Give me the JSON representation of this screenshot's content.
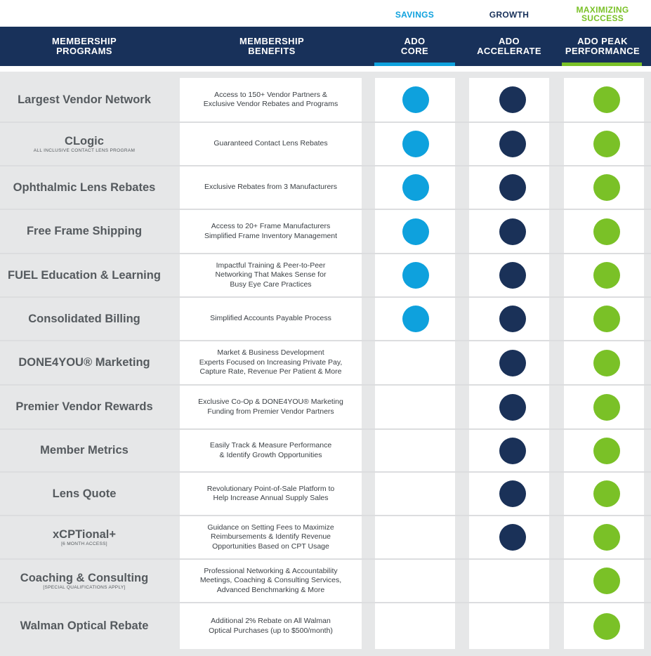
{
  "tiers": {
    "core_label": "SAVINGS",
    "accelerate_label": "GROWTH",
    "peak_label_line1": "MAXIMIZING",
    "peak_label_line2": "SUCCESS"
  },
  "header": {
    "programs_line1": "MEMBERSHIP",
    "programs_line2": "PROGRAMS",
    "benefits_line1": "MEMBERSHIP",
    "benefits_line2": "BENEFITS",
    "core_line1": "ADO",
    "core_line2": "CORE",
    "accelerate_line1": "ADO",
    "accelerate_line2": "ACCELERATE",
    "peak_line1": "ADO PEAK",
    "peak_line2": "PERFORMANCE"
  },
  "colors": {
    "navy": "#18315a",
    "core_blue": "#0ea1dd",
    "accelerate_navy": "#1a3158",
    "peak_green": "#7ac127"
  },
  "rows": [
    {
      "program": "Largest Vendor Network",
      "sub": "",
      "benefit": "Access to 150+ Vendor Partners &\nExclusive Vendor Rebates and Programs",
      "core": true,
      "accelerate": true,
      "peak": true
    },
    {
      "program": "CLogic",
      "sub": "ALL INCLUSIVE CONTACT LENS PROGRAM",
      "benefit": "Guaranteed Contact Lens Rebates",
      "core": true,
      "accelerate": true,
      "peak": true
    },
    {
      "program": "Ophthalmic Lens Rebates",
      "sub": "",
      "benefit": "Exclusive Rebates from 3 Manufacturers",
      "core": true,
      "accelerate": true,
      "peak": true
    },
    {
      "program": "Free Frame Shipping",
      "sub": "",
      "benefit": "Access to 20+ Frame Manufacturers\nSimplified Frame Inventory Management",
      "core": true,
      "accelerate": true,
      "peak": true
    },
    {
      "program": "FUEL Education & Learning",
      "sub": "",
      "benefit": "Impactful Training & Peer-to-Peer\nNetworking That Makes Sense for\nBusy Eye Care Practices",
      "core": true,
      "accelerate": true,
      "peak": true
    },
    {
      "program": "Consolidated Billing",
      "sub": "",
      "benefit": "Simplified Accounts Payable Process",
      "core": true,
      "accelerate": true,
      "peak": true
    },
    {
      "program": "DONE4YOU® Marketing",
      "sub": "",
      "benefit": "Market & Business Development\nExperts Focused on Increasing Private Pay,\nCapture Rate, Revenue Per Patient & More",
      "core": false,
      "accelerate": true,
      "peak": true
    },
    {
      "program": "Premier Vendor Rewards",
      "sub": "",
      "benefit": "Exclusive Co-Op & DONE4YOU® Marketing\nFunding from Premier Vendor Partners",
      "core": false,
      "accelerate": true,
      "peak": true
    },
    {
      "program": "Member Metrics",
      "sub": "",
      "benefit": "Easily Track & Measure Performance\n& Identify Growth Opportunities",
      "core": false,
      "accelerate": true,
      "peak": true
    },
    {
      "program": "Lens Quote",
      "sub": "",
      "benefit": "Revolutionary Point-of-Sale Platform to\nHelp Increase Annual Supply Sales",
      "core": false,
      "accelerate": true,
      "peak": true
    },
    {
      "program": "xCPTional+",
      "sub": "[6 MONTH ACCESS]",
      "benefit": "Guidance on Setting Fees to Maximize\nReimbursements & Identify Revenue\nOpportunities Based on CPT Usage",
      "core": false,
      "accelerate": true,
      "peak": true
    },
    {
      "program": "Coaching & Consulting",
      "sub": "[SPECIAL QUALIFICATIONS APPLY]",
      "benefit": "Professional Networking & Accountability\nMeetings, Coaching & Consulting Services,\nAdvanced Benchmarking & More",
      "core": false,
      "accelerate": false,
      "peak": true
    },
    {
      "program": "Walman Optical Rebate",
      "sub": "",
      "benefit": "Additional 2% Rebate on All Walman\nOptical Purchases (up to $500/month)",
      "core": false,
      "accelerate": false,
      "peak": true
    }
  ]
}
